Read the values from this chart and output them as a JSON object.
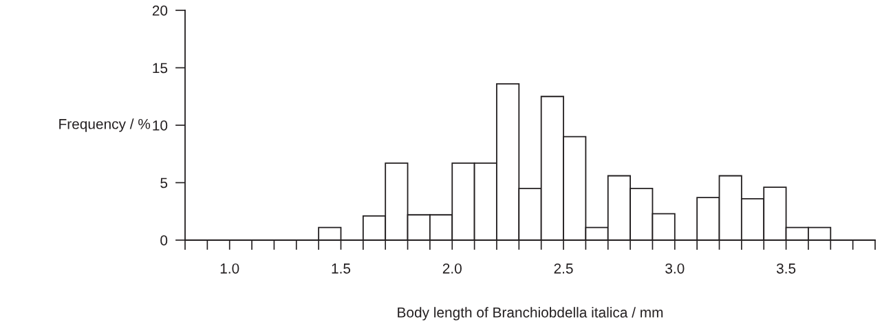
{
  "chart_data": {
    "type": "histogram",
    "xlabel": "Body length of Branchiobdella italica / mm",
    "ylabel": "Frequency / %",
    "bins": [
      1.4,
      1.5,
      1.6,
      1.7,
      1.8,
      1.9,
      2.0,
      2.1,
      2.2,
      2.3,
      2.4,
      2.5,
      2.6,
      2.7,
      2.8,
      2.9,
      3.0,
      3.1,
      3.2,
      3.3,
      3.4,
      3.5,
      3.6,
      3.7
    ],
    "values": [
      1.1,
      0,
      2.1,
      6.7,
      2.2,
      2.2,
      6.7,
      6.7,
      13.6,
      4.5,
      12.5,
      9.0,
      1.1,
      5.6,
      4.5,
      2.3,
      0,
      3.7,
      5.6,
      3.6,
      4.6,
      1.1,
      1.1
    ],
    "color": "#ffffff",
    "xlim": [
      0.8,
      3.9
    ],
    "ylim": [
      0,
      20
    ],
    "yticks": [
      0,
      5,
      10,
      15,
      20
    ],
    "xticks": [
      {
        "value": 0.8,
        "label": null
      },
      {
        "value": 0.9,
        "label": null
      },
      {
        "value": 1.0,
        "label": "1.0"
      },
      {
        "value": 1.1,
        "label": null
      },
      {
        "value": 1.2,
        "label": null
      },
      {
        "value": 1.3,
        "label": null
      },
      {
        "value": 1.4,
        "label": null
      },
      {
        "value": 1.5,
        "label": "1.5"
      },
      {
        "value": 1.6,
        "label": null
      },
      {
        "value": 1.7,
        "label": null
      },
      {
        "value": 1.8,
        "label": null
      },
      {
        "value": 1.9,
        "label": null
      },
      {
        "value": 2.0,
        "label": "2.0"
      },
      {
        "value": 2.1,
        "label": null
      },
      {
        "value": 2.2,
        "label": null
      },
      {
        "value": 2.3,
        "label": null
      },
      {
        "value": 2.4,
        "label": null
      },
      {
        "value": 2.5,
        "label": "2.5"
      },
      {
        "value": 2.6,
        "label": null
      },
      {
        "value": 2.7,
        "label": null
      },
      {
        "value": 2.8,
        "label": null
      },
      {
        "value": 2.9,
        "label": null
      },
      {
        "value": 3.0,
        "label": "3.0"
      },
      {
        "value": 3.1,
        "label": null
      },
      {
        "value": 3.2,
        "label": null
      },
      {
        "value": 3.3,
        "label": null
      },
      {
        "value": 3.4,
        "label": null
      },
      {
        "value": 3.5,
        "label": "3.5"
      },
      {
        "value": 3.6,
        "label": null
      },
      {
        "value": 3.7,
        "label": null
      },
      {
        "value": 3.8,
        "label": null
      },
      {
        "value": 3.9,
        "label": null
      }
    ],
    "grid": false
  }
}
